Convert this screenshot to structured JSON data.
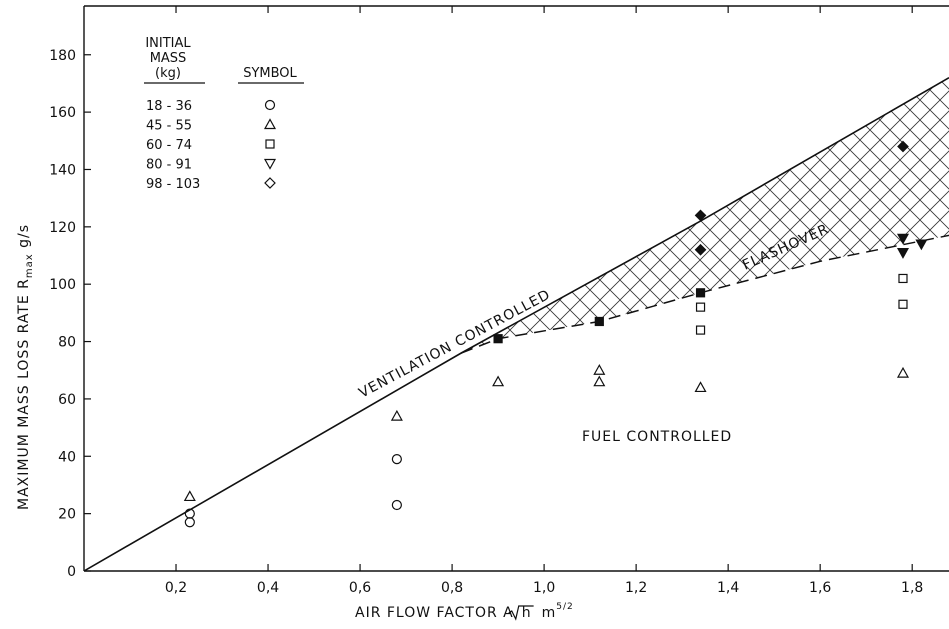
{
  "chart_data": {
    "type": "scatter",
    "x_ticks": [
      "0,2",
      "0,4",
      "0,6",
      "0,8",
      "1,0",
      "1,2",
      "1,4",
      "1,6",
      "1,8"
    ],
    "y_ticks": [
      "0",
      "20",
      "40",
      "60",
      "80",
      "100",
      "120",
      "140",
      "160",
      "180"
    ],
    "xlim": [
      0,
      1.88
    ],
    "ylim": [
      0,
      197
    ],
    "xlabel": {
      "main": "AIR FLOW FACTOR  A",
      "sqrt": "h",
      "unit": "m",
      "exp": "5/2"
    },
    "ylabel": {
      "main": "MAXIMUM MASS LOSS RATE  R",
      "sub": "max",
      "unit": " g/s"
    },
    "legend": {
      "header_mass": [
        "INITIAL",
        "MASS",
        "(kg)"
      ],
      "header_symbol": "SYMBOL",
      "entries": [
        {
          "label": "18 - 36",
          "marker": "circle"
        },
        {
          "label": "45 - 55",
          "marker": "triangle-up"
        },
        {
          "label": "60 - 74",
          "marker": "square"
        },
        {
          "label": "80 - 91",
          "marker": "triangle-down"
        },
        {
          "label": "98 - 103",
          "marker": "diamond"
        }
      ]
    },
    "annotations": [
      "VENTILATION  CONTROLLED",
      "FLASHOVER",
      "FUEL  CONTROLLED"
    ],
    "ventilation_line": [
      [
        0,
        0
      ],
      [
        0.82,
        76
      ],
      [
        1.34,
        122
      ],
      [
        1.88,
        172
      ]
    ],
    "fuel_boundary": [
      [
        0.82,
        76
      ],
      [
        0.9,
        81
      ],
      [
        1.12,
        87
      ],
      [
        1.34,
        97
      ],
      [
        1.6,
        108
      ],
      [
        1.88,
        117
      ]
    ],
    "series": [
      {
        "marker": "circle",
        "filled": false,
        "points": [
          [
            0.23,
            20
          ],
          [
            0.23,
            17
          ],
          [
            0.68,
            39
          ],
          [
            0.68,
            23
          ]
        ]
      },
      {
        "marker": "triangle-up",
        "filled": false,
        "points": [
          [
            0.23,
            26
          ],
          [
            0.68,
            54
          ],
          [
            0.9,
            66
          ],
          [
            1.12,
            70
          ],
          [
            1.12,
            66
          ],
          [
            1.34,
            64
          ],
          [
            1.78,
            69
          ]
        ]
      },
      {
        "marker": "square",
        "filled": false,
        "points": [
          [
            1.34,
            92
          ],
          [
            1.34,
            84
          ],
          [
            1.78,
            102
          ],
          [
            1.78,
            93
          ]
        ]
      },
      {
        "marker": "square",
        "filled": true,
        "points": [
          [
            0.9,
            81
          ],
          [
            1.12,
            87
          ],
          [
            1.34,
            97
          ]
        ]
      },
      {
        "marker": "triangle-down",
        "filled": true,
        "points": [
          [
            1.78,
            116
          ],
          [
            1.78,
            111
          ],
          [
            1.82,
            114
          ]
        ]
      },
      {
        "marker": "diamond",
        "filled": true,
        "points": [
          [
            1.34,
            124
          ],
          [
            1.34,
            112
          ],
          [
            1.78,
            148
          ]
        ]
      }
    ]
  }
}
